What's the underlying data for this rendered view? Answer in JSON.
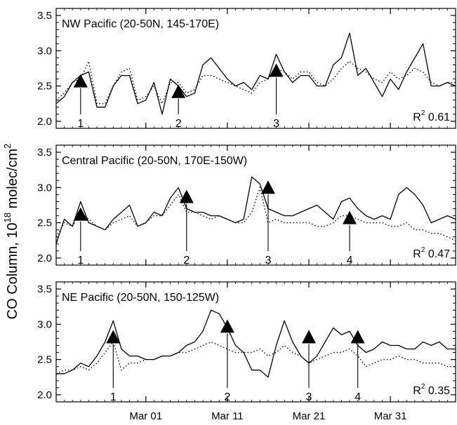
{
  "ylabel_main": "CO Column, 10",
  "ylabel_exp": "18",
  "ylabel_unit": " molec/cm",
  "ylabel_unit_exp": "2",
  "x_ticklabels": [
    "Mar 01",
    "Mar 11",
    "Mar 21",
    "Mar 31"
  ],
  "y_ticklabels": [
    "2.0",
    "2.5",
    "3.0",
    "3.5"
  ],
  "chart_data": [
    {
      "type": "line",
      "title": "NW Pacific (20-50N, 145-170E)",
      "r2_label": "R",
      "r2_exp": "2",
      "r2_value": "0.61",
      "x_axis": {
        "type": "date",
        "start": "2001-02-18",
        "end": "2001-04-08",
        "ticks": [
          "2001-03-01",
          "2001-03-11",
          "2001-03-21",
          "2001-03-31"
        ]
      },
      "ylim": [
        1.9,
        3.6
      ],
      "series": [
        {
          "style": "solid",
          "x": [
            "2001-02-18",
            "2001-02-19",
            "2001-02-20",
            "2001-02-21",
            "2001-02-22",
            "2001-02-23",
            "2001-02-24",
            "2001-02-25",
            "2001-02-26",
            "2001-02-27",
            "2001-02-28",
            "2001-03-01",
            "2001-03-02",
            "2001-03-03",
            "2001-03-04",
            "2001-03-05",
            "2001-03-06",
            "2001-03-07",
            "2001-03-08",
            "2001-03-09",
            "2001-03-10",
            "2001-03-11",
            "2001-03-12",
            "2001-03-13",
            "2001-03-14",
            "2001-03-15",
            "2001-03-16",
            "2001-03-17",
            "2001-03-18",
            "2001-03-19",
            "2001-03-20",
            "2001-03-21",
            "2001-03-22",
            "2001-03-23",
            "2001-03-24",
            "2001-03-25",
            "2001-03-26",
            "2001-03-27",
            "2001-03-28",
            "2001-03-29",
            "2001-03-30",
            "2001-03-31",
            "2001-04-01",
            "2001-04-02",
            "2001-04-03",
            "2001-04-04",
            "2001-04-05",
            "2001-04-06",
            "2001-04-07",
            "2001-04-08"
          ],
          "y": [
            2.25,
            2.35,
            2.55,
            2.65,
            2.7,
            2.2,
            2.2,
            2.5,
            2.65,
            2.65,
            2.25,
            2.3,
            2.55,
            2.1,
            2.6,
            2.5,
            2.35,
            2.4,
            2.8,
            2.9,
            2.75,
            2.6,
            2.5,
            2.55,
            2.45,
            2.65,
            2.6,
            2.95,
            2.7,
            2.55,
            2.65,
            2.65,
            2.5,
            2.5,
            2.8,
            2.9,
            3.25,
            2.65,
            2.75,
            2.55,
            2.35,
            2.6,
            2.45,
            2.7,
            2.9,
            3.1,
            2.5,
            2.5,
            2.55,
            2.5
          ]
        },
        {
          "style": "dotted",
          "x": [
            "2001-02-18",
            "2001-02-19",
            "2001-02-20",
            "2001-02-21",
            "2001-02-22",
            "2001-02-23",
            "2001-02-24",
            "2001-02-25",
            "2001-02-26",
            "2001-02-27",
            "2001-02-28",
            "2001-03-01",
            "2001-03-02",
            "2001-03-03",
            "2001-03-04",
            "2001-03-05",
            "2001-03-06",
            "2001-03-07",
            "2001-03-08",
            "2001-03-09",
            "2001-03-10",
            "2001-03-11",
            "2001-03-12",
            "2001-03-13",
            "2001-03-14",
            "2001-03-15",
            "2001-03-16",
            "2001-03-17",
            "2001-03-18",
            "2001-03-19",
            "2001-03-20",
            "2001-03-21",
            "2001-03-22",
            "2001-03-23",
            "2001-03-24",
            "2001-03-25",
            "2001-03-26",
            "2001-03-27",
            "2001-03-28",
            "2001-03-29",
            "2001-03-30",
            "2001-03-31",
            "2001-04-01",
            "2001-04-02",
            "2001-04-03",
            "2001-04-04",
            "2001-04-05",
            "2001-04-06",
            "2001-04-07",
            "2001-04-08"
          ],
          "y": [
            2.3,
            2.4,
            2.55,
            2.6,
            2.85,
            2.25,
            2.25,
            2.5,
            2.7,
            2.75,
            2.3,
            2.35,
            2.5,
            2.25,
            2.55,
            2.55,
            2.4,
            2.45,
            2.65,
            2.65,
            2.6,
            2.55,
            2.5,
            2.45,
            2.4,
            2.55,
            2.6,
            2.75,
            2.7,
            2.6,
            2.7,
            2.7,
            2.55,
            2.5,
            2.6,
            2.75,
            2.85,
            2.75,
            2.7,
            2.6,
            2.55,
            2.7,
            2.6,
            2.65,
            2.75,
            2.7,
            2.55,
            2.5,
            2.55,
            2.55
          ]
        }
      ],
      "markers": [
        {
          "label": "1",
          "x": "2001-02-21",
          "y": 2.55
        },
        {
          "label": "2",
          "x": "2001-03-05",
          "y": 2.4
        },
        {
          "label": "3",
          "x": "2001-03-17",
          "y": 2.7
        }
      ]
    },
    {
      "type": "line",
      "title": "Central Pacific (20-50N, 170E-150W)",
      "r2_label": "R",
      "r2_exp": "2",
      "r2_value": "0.47",
      "x_axis": {
        "type": "date",
        "start": "2001-02-18",
        "end": "2001-04-08",
        "ticks": [
          "2001-03-01",
          "2001-03-11",
          "2001-03-21",
          "2001-03-31"
        ]
      },
      "ylim": [
        1.9,
        3.6
      ],
      "series": [
        {
          "style": "solid",
          "x": [
            "2001-02-18",
            "2001-02-19",
            "2001-02-20",
            "2001-02-21",
            "2001-02-22",
            "2001-02-23",
            "2001-02-24",
            "2001-02-25",
            "2001-02-26",
            "2001-02-27",
            "2001-02-28",
            "2001-03-01",
            "2001-03-02",
            "2001-03-03",
            "2001-03-04",
            "2001-03-05",
            "2001-03-06",
            "2001-03-07",
            "2001-03-08",
            "2001-03-09",
            "2001-03-10",
            "2001-03-11",
            "2001-03-12",
            "2001-03-13",
            "2001-03-14",
            "2001-03-15",
            "2001-03-16",
            "2001-03-17",
            "2001-03-18",
            "2001-03-19",
            "2001-03-20",
            "2001-03-21",
            "2001-03-22",
            "2001-03-23",
            "2001-03-24",
            "2001-03-25",
            "2001-03-26",
            "2001-03-27",
            "2001-03-28",
            "2001-03-29",
            "2001-03-30",
            "2001-03-31",
            "2001-04-01",
            "2001-04-02",
            "2001-04-03",
            "2001-04-04",
            "2001-04-05",
            "2001-04-06",
            "2001-04-07",
            "2001-04-08"
          ],
          "y": [
            2.2,
            2.55,
            2.45,
            2.8,
            2.5,
            2.45,
            2.4,
            2.55,
            2.65,
            2.75,
            2.45,
            2.5,
            2.65,
            2.6,
            2.85,
            3.0,
            2.7,
            2.65,
            2.65,
            2.6,
            2.6,
            2.55,
            2.5,
            2.55,
            3.15,
            3.05,
            2.7,
            2.65,
            2.6,
            2.6,
            2.65,
            2.7,
            2.75,
            2.65,
            2.55,
            2.8,
            2.85,
            2.7,
            2.6,
            2.55,
            2.6,
            2.55,
            2.9,
            3.0,
            2.9,
            2.75,
            2.5,
            2.55,
            2.6,
            2.55
          ]
        },
        {
          "style": "dotted",
          "x": [
            "2001-02-18",
            "2001-02-19",
            "2001-02-20",
            "2001-02-21",
            "2001-02-22",
            "2001-02-23",
            "2001-02-24",
            "2001-02-25",
            "2001-02-26",
            "2001-02-27",
            "2001-02-28",
            "2001-03-01",
            "2001-03-02",
            "2001-03-03",
            "2001-03-04",
            "2001-03-05",
            "2001-03-06",
            "2001-03-07",
            "2001-03-08",
            "2001-03-09",
            "2001-03-10",
            "2001-03-11",
            "2001-03-12",
            "2001-03-13",
            "2001-03-14",
            "2001-03-15",
            "2001-03-16",
            "2001-03-17",
            "2001-03-18",
            "2001-03-19",
            "2001-03-20",
            "2001-03-21",
            "2001-03-22",
            "2001-03-23",
            "2001-03-24",
            "2001-03-25",
            "2001-03-26",
            "2001-03-27",
            "2001-03-28",
            "2001-03-29",
            "2001-03-30",
            "2001-03-31",
            "2001-04-01",
            "2001-04-02",
            "2001-04-03",
            "2001-04-04",
            "2001-04-05",
            "2001-04-06",
            "2001-04-07",
            "2001-04-08"
          ],
          "y": [
            2.3,
            2.5,
            2.45,
            2.65,
            2.55,
            2.45,
            2.4,
            2.5,
            2.55,
            2.6,
            2.45,
            2.5,
            2.6,
            2.6,
            2.75,
            2.9,
            2.65,
            2.65,
            2.6,
            2.55,
            2.6,
            2.55,
            2.5,
            2.5,
            2.65,
            3.0,
            2.5,
            2.55,
            2.5,
            2.5,
            2.5,
            2.5,
            2.45,
            2.45,
            2.5,
            2.6,
            2.6,
            2.55,
            2.5,
            2.5,
            2.5,
            2.45,
            2.45,
            2.5,
            2.4,
            2.4,
            2.35,
            2.35,
            2.3,
            2.25
          ]
        }
      ],
      "markers": [
        {
          "label": "1",
          "x": "2001-02-21",
          "y": 2.6
        },
        {
          "label": "2",
          "x": "2001-03-06",
          "y": 2.85
        },
        {
          "label": "3",
          "x": "2001-03-16",
          "y": 2.98
        },
        {
          "label": "4",
          "x": "2001-03-26",
          "y": 2.55
        }
      ]
    },
    {
      "type": "line",
      "title": "NE Pacific (20-50N, 150-125W)",
      "r2_label": "R",
      "r2_exp": "2",
      "r2_value": "0.35",
      "x_axis": {
        "type": "date",
        "start": "2001-02-18",
        "end": "2001-04-08",
        "ticks": [
          "2001-03-01",
          "2001-03-11",
          "2001-03-21",
          "2001-03-31"
        ]
      },
      "ylim": [
        1.9,
        3.6
      ],
      "series": [
        {
          "style": "solid",
          "x": [
            "2001-02-18",
            "2001-02-19",
            "2001-02-20",
            "2001-02-21",
            "2001-02-22",
            "2001-02-23",
            "2001-02-24",
            "2001-02-25",
            "2001-02-26",
            "2001-02-27",
            "2001-02-28",
            "2001-03-01",
            "2001-03-02",
            "2001-03-03",
            "2001-03-04",
            "2001-03-05",
            "2001-03-06",
            "2001-03-07",
            "2001-03-08",
            "2001-03-09",
            "2001-03-10",
            "2001-03-11",
            "2001-03-12",
            "2001-03-13",
            "2001-03-14",
            "2001-03-15",
            "2001-03-16",
            "2001-03-17",
            "2001-03-18",
            "2001-03-19",
            "2001-03-20",
            "2001-03-21",
            "2001-03-22",
            "2001-03-23",
            "2001-03-24",
            "2001-03-25",
            "2001-03-26",
            "2001-03-27",
            "2001-03-28",
            "2001-03-29",
            "2001-03-30",
            "2001-03-31",
            "2001-04-01",
            "2001-04-02",
            "2001-04-03",
            "2001-04-04",
            "2001-04-05",
            "2001-04-06",
            "2001-04-07",
            "2001-04-08"
          ],
          "y": [
            2.3,
            2.3,
            2.35,
            2.45,
            2.4,
            2.55,
            2.75,
            3.05,
            2.65,
            2.55,
            2.55,
            2.5,
            2.5,
            2.55,
            2.55,
            2.6,
            2.7,
            2.75,
            2.9,
            3.2,
            3.15,
            2.95,
            2.7,
            2.6,
            2.35,
            2.35,
            2.25,
            2.7,
            3.05,
            2.75,
            2.55,
            2.45,
            2.55,
            2.75,
            2.95,
            2.85,
            2.9,
            2.7,
            2.6,
            2.65,
            2.75,
            2.7,
            2.7,
            2.65,
            2.65,
            2.75,
            2.7,
            2.75,
            2.65,
            2.65
          ]
        },
        {
          "style": "dotted",
          "x": [
            "2001-02-18",
            "2001-02-19",
            "2001-02-20",
            "2001-02-21",
            "2001-02-22",
            "2001-02-23",
            "2001-02-24",
            "2001-02-25",
            "2001-02-26",
            "2001-02-27",
            "2001-02-28",
            "2001-03-01",
            "2001-03-02",
            "2001-03-03",
            "2001-03-04",
            "2001-03-05",
            "2001-03-06",
            "2001-03-07",
            "2001-03-08",
            "2001-03-09",
            "2001-03-10",
            "2001-03-11",
            "2001-03-12",
            "2001-03-13",
            "2001-03-14",
            "2001-03-15",
            "2001-03-16",
            "2001-03-17",
            "2001-03-18",
            "2001-03-19",
            "2001-03-20",
            "2001-03-21",
            "2001-03-22",
            "2001-03-23",
            "2001-03-24",
            "2001-03-25",
            "2001-03-26",
            "2001-03-27",
            "2001-03-28",
            "2001-03-29",
            "2001-03-30",
            "2001-03-31",
            "2001-04-01",
            "2001-04-02",
            "2001-04-03",
            "2001-04-04",
            "2001-04-05",
            "2001-04-06",
            "2001-04-07",
            "2001-04-08"
          ],
          "y": [
            2.3,
            2.35,
            2.35,
            2.4,
            2.35,
            2.45,
            2.6,
            2.75,
            2.35,
            2.45,
            2.45,
            2.5,
            2.5,
            2.55,
            2.55,
            2.6,
            2.6,
            2.65,
            2.7,
            2.75,
            2.7,
            2.65,
            2.6,
            2.6,
            2.6,
            2.65,
            2.55,
            2.6,
            2.7,
            2.6,
            2.55,
            2.45,
            2.5,
            2.55,
            2.6,
            2.6,
            2.65,
            2.55,
            2.4,
            2.45,
            2.5,
            2.5,
            2.55,
            2.5,
            2.5,
            2.45,
            2.45,
            2.45,
            2.4,
            2.4
          ]
        }
      ],
      "markers": [
        {
          "label": "1",
          "x": "2001-02-25",
          "y": 2.8
        },
        {
          "label": "2",
          "x": "2001-03-11",
          "y": 2.95
        },
        {
          "label": "3",
          "x": "2001-03-21",
          "y": 2.8
        },
        {
          "label": "4",
          "x": "2001-03-27",
          "y": 2.8
        }
      ]
    }
  ]
}
